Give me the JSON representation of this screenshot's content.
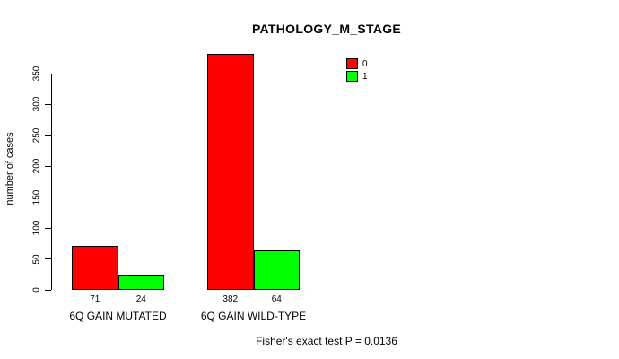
{
  "title": "PATHOLOGY_M_STAGE",
  "ylabel": "number of cases",
  "footer": "Fisher's exact test P = 0.0136",
  "legend": {
    "items": [
      {
        "label": "0",
        "color": "#ff0000"
      },
      {
        "label": "1",
        "color": "#00ff00"
      }
    ]
  },
  "chart_data": {
    "type": "bar",
    "title": "PATHOLOGY_M_STAGE",
    "xlabel": "",
    "ylabel": "number of cases",
    "categories": [
      "6Q GAIN MUTATED",
      "6Q GAIN WILD-TYPE"
    ],
    "series": [
      {
        "name": "0",
        "color": "#ff0000",
        "values": [
          71,
          382
        ]
      },
      {
        "name": "1",
        "color": "#00ff00",
        "values": [
          24,
          64
        ]
      }
    ],
    "bar_value_labels": [
      [
        71,
        24
      ],
      [
        382,
        64
      ]
    ],
    "yticks": [
      0,
      50,
      100,
      150,
      200,
      250,
      300,
      350
    ],
    "ylim": [
      0,
      350
    ],
    "grid": false,
    "legend_position": "top-right-inside",
    "annotation": "Fisher's exact test P = 0.0136"
  }
}
